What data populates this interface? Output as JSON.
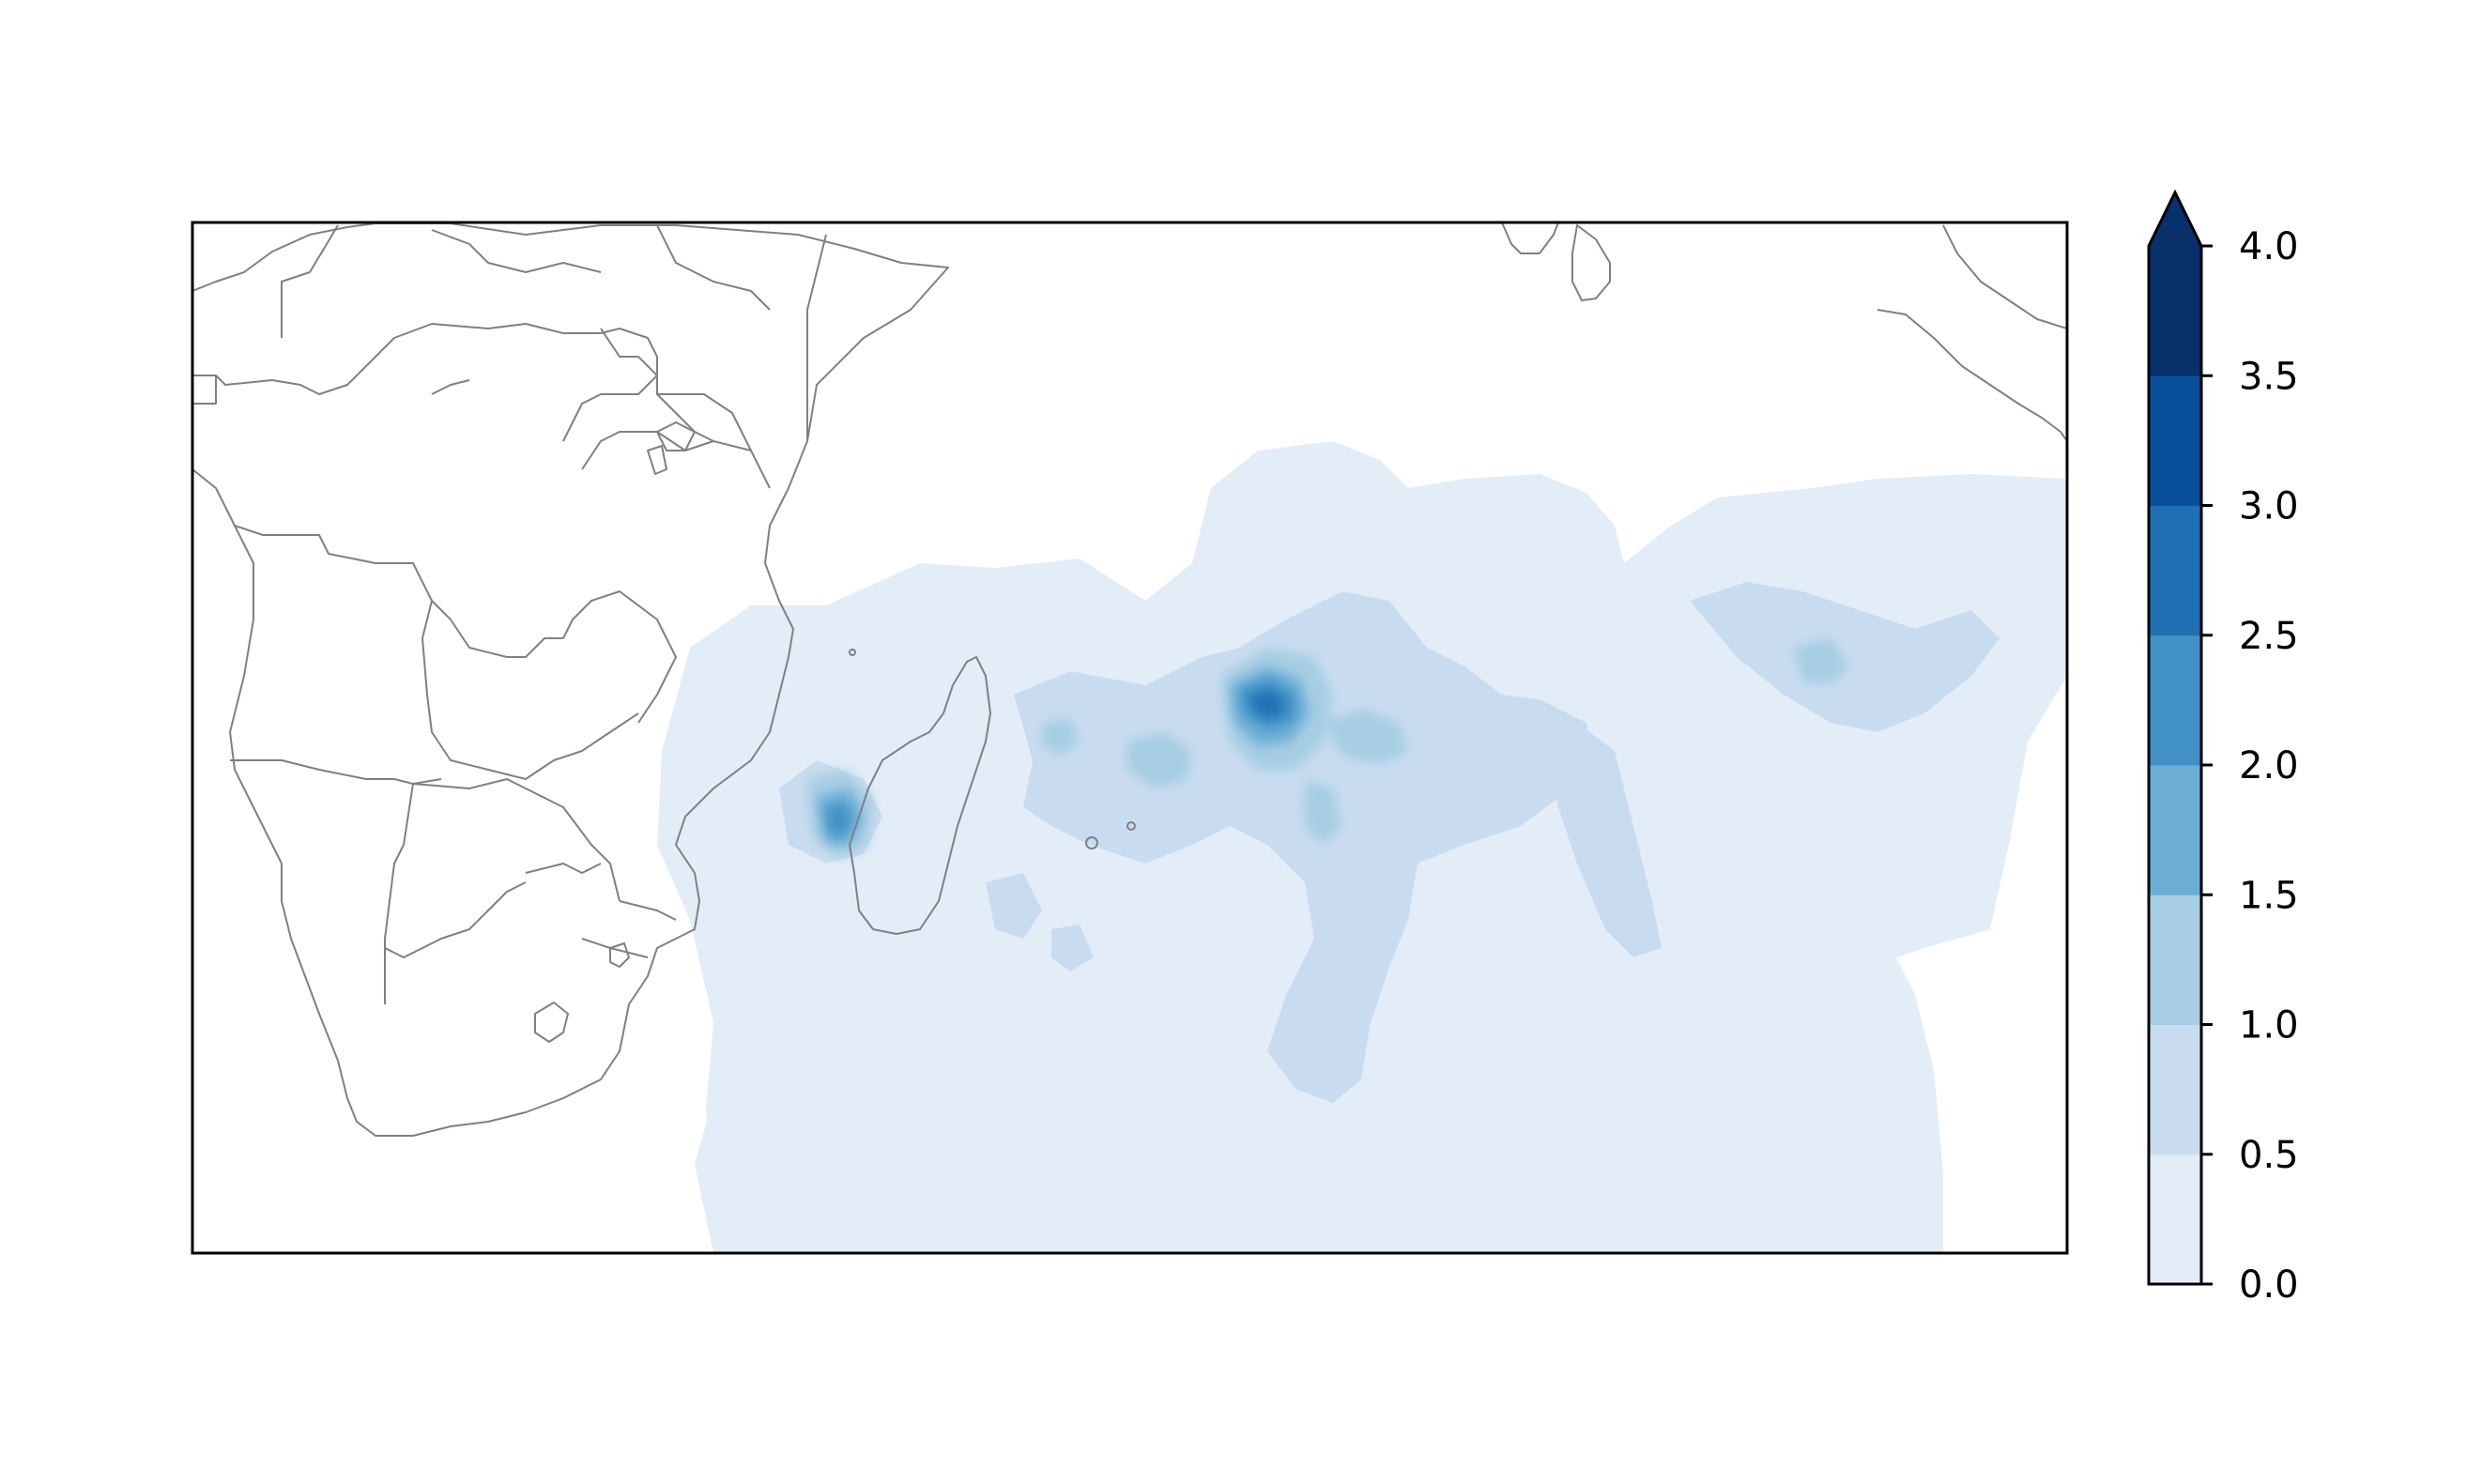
{
  "map": {
    "extent_deg": {
      "lon": [
        10,
        110
      ],
      "lat": [
        -45,
        10
      ]
    },
    "background": "#ffffff",
    "border_color": "#808080",
    "field_color_scale": "Blues"
  },
  "colorbar": {
    "levels": [
      0.0,
      0.5,
      1.0,
      1.5,
      2.0,
      2.5,
      3.0,
      3.5,
      4.0
    ],
    "tick_labels": [
      "0.0",
      "0.5",
      "1.0",
      "1.5",
      "2.0",
      "2.5",
      "3.0",
      "3.5",
      "4.0"
    ],
    "colors": [
      "#e2edf8",
      "#c9dcef",
      "#a6cde3",
      "#6caed6",
      "#4191c6",
      "#2070b4",
      "#08509b",
      "#08306b"
    ],
    "extend": "max"
  }
}
